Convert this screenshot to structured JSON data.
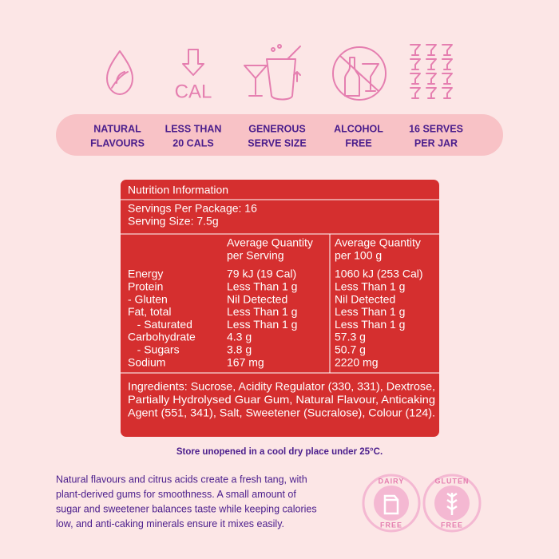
{
  "features": [
    {
      "lines": [
        "NATURAL",
        "FLAVOURS"
      ]
    },
    {
      "lines": [
        "LESS THAN",
        "20 CALS"
      ]
    },
    {
      "lines": [
        "GENEROUS",
        "SERVE SIZE"
      ]
    },
    {
      "lines": [
        "ALCOHOL",
        "FREE"
      ]
    },
    {
      "lines": [
        "16 SERVES",
        "PER JAR"
      ]
    }
  ],
  "cal_icon": "CAL",
  "nutrition": {
    "title": "Nutrition Information",
    "servings_per_package": "Servings Per Package: 16",
    "serving_size": "Serving Size: 7.5g",
    "column_headers": [
      [
        "Average Quantity",
        "per Serving"
      ],
      [
        "Average Quantity",
        "per 100 g"
      ]
    ],
    "rows": [
      [
        "Energy",
        "79 kJ (19 Cal)",
        "1060 kJ (253 Cal)"
      ],
      [
        "Protein",
        "Less Than 1 g",
        "Less Than 1 g"
      ],
      [
        "- Gluten",
        "Nil Detected",
        "Nil Detected"
      ],
      [
        "Fat, total",
        "Less Than 1 g",
        "Less Than 1 g"
      ],
      [
        "   - Saturated",
        "Less Than 1 g",
        "Less Than 1 g"
      ],
      [
        "Carbohydrate",
        "4.3 g",
        "57.3 g"
      ],
      [
        "   - Sugars",
        "3.8 g",
        "50.7 g"
      ],
      [
        "Sodium",
        "167 mg",
        "2220 mg"
      ]
    ],
    "ingredients": [
      "Ingredients: Sucrose, Acidity Regulator (330, 331), Dextrose,",
      "Partially Hydrolysed Guar Gum, Natural Flavour, Anticaking",
      "Agent (551, 341), Salt, Sweetener (Sucralose), Colour (124)."
    ]
  },
  "storage": "Store unopened in a cool dry place under 25°C.",
  "description": [
    "Natural flavours and citrus acids create a fresh tang, with",
    "plant-derived gums for smoothness. A small amount of",
    "sugar and sweetener balances taste while keeping calories",
    "low, and anti-caking minerals ensure it mixes easily."
  ],
  "badges": [
    {
      "top": "DAIRY",
      "bottom": "FREE"
    },
    {
      "top": "GLUTEN",
      "bottom": "FREE"
    }
  ]
}
